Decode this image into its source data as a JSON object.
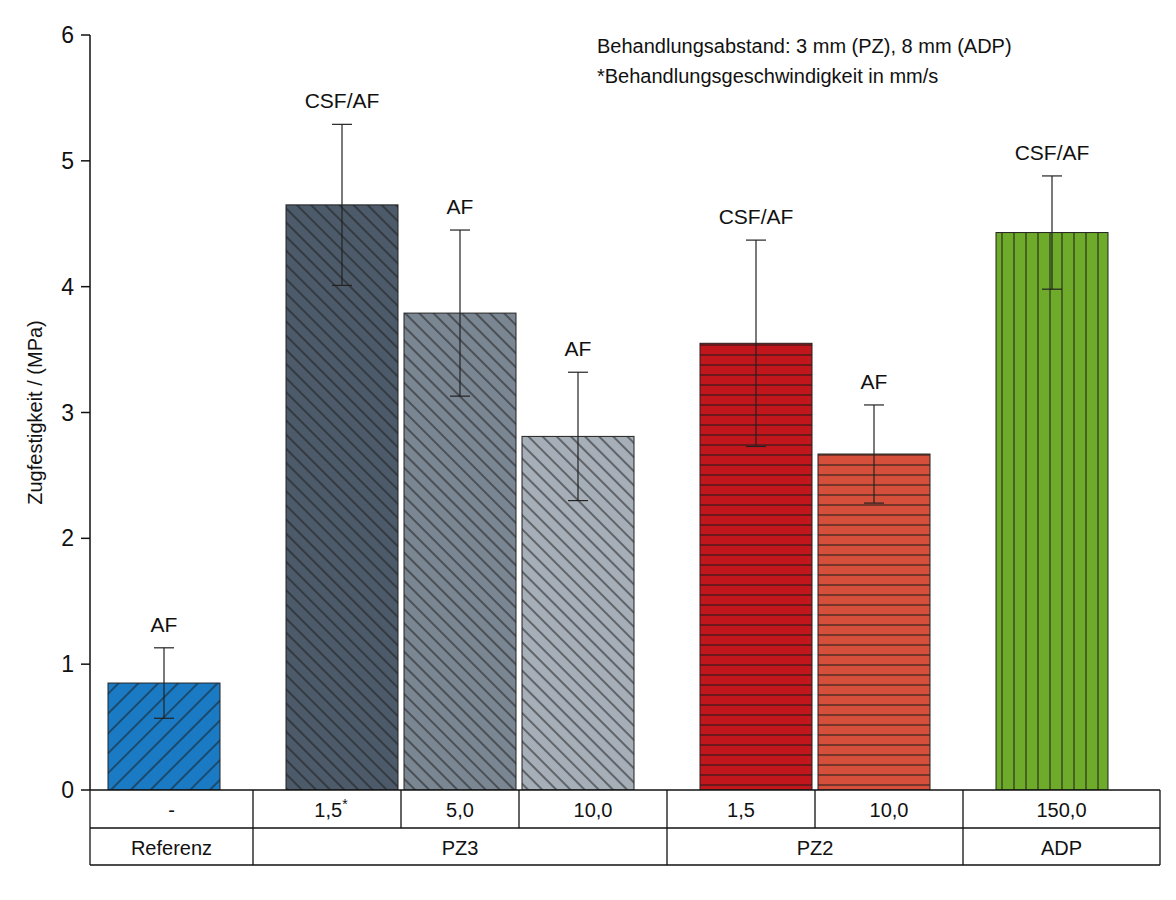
{
  "chart_data": {
    "type": "bar",
    "y_label": "Zugfestigkeit  /  (MPa)",
    "annotations": [
      "Behandlungsabstand: 3 mm (PZ), 8 mm (ADP)",
      "*Behandlungsgeschwindigkeit in mm/s"
    ],
    "categories": [
      "-",
      "1,5*",
      "5,0",
      "10,0",
      "1,5",
      "10,0",
      "150,0"
    ],
    "groups": [
      "Referenz",
      "PZ3",
      "PZ3",
      "PZ3",
      "PZ2",
      "PZ2",
      "ADP"
    ],
    "values": [
      0.85,
      4.65,
      3.79,
      2.81,
      3.55,
      2.67,
      4.43
    ],
    "errors": [
      0.28,
      0.64,
      0.66,
      0.51,
      0.82,
      0.39,
      0.45
    ],
    "failure_modes": [
      "AF",
      "CSF/AF",
      "AF",
      "AF",
      "CSF/AF",
      "AF",
      "CSF/AF"
    ],
    "colors": [
      "#1a7bc4",
      "#4c5a69",
      "#7a8692",
      "#a6aeb7",
      "#c0161c",
      "#d64f3a",
      "#6fab2a"
    ],
    "ylim": [
      0,
      6
    ],
    "yticks": [
      0,
      1,
      2,
      3,
      4,
      5,
      6
    ],
    "grid": false
  }
}
